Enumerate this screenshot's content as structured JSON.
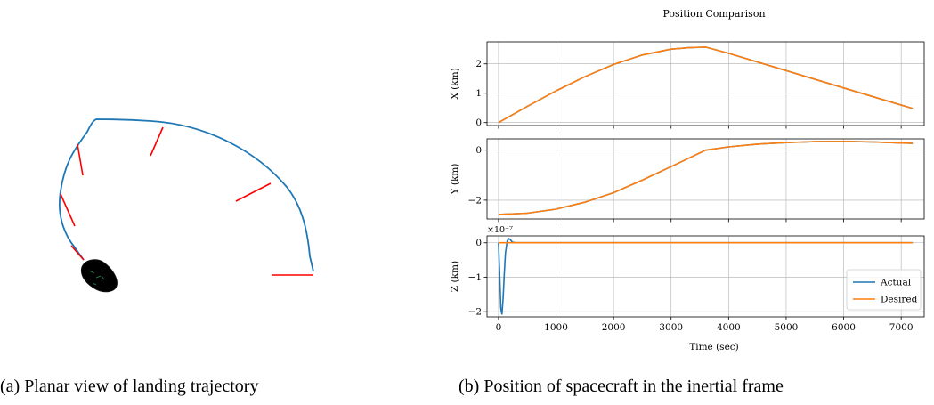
{
  "captions": {
    "a": "(a) Planar view of landing trajectory",
    "b": "(b) Position of spacecraft in the inertial frame"
  },
  "colors": {
    "trajectory": "#1f77b4",
    "thrust": "#ff0000",
    "asteroid": "#000000",
    "actual": "#1f77b4",
    "desired": "#ff7f0e",
    "grid": "#b0b0b0"
  },
  "chart_data": [
    {
      "type": "line",
      "panel": "planar-view",
      "title": "",
      "xlabel": "",
      "ylabel": "",
      "axes_visible": false,
      "series": [
        {
          "values_description": "landing trajectory arc from right to small asteroid at lower left"
        }
      ]
    },
    {
      "type": "line",
      "panel": "position-comparison",
      "title": "Position Comparison",
      "xlabel": "Time (sec)",
      "xlim": [
        -200,
        7400
      ],
      "xticks": [
        0,
        1000,
        2000,
        3000,
        4000,
        5000,
        6000,
        7000
      ],
      "grid": true,
      "legend": {
        "placement": "lower-right",
        "entries": [
          "Actual",
          "Desired"
        ]
      },
      "subplots": [
        {
          "ylabel": "X (km)",
          "ylim": [
            -0.1,
            2.75
          ],
          "yticks": [
            0,
            1,
            2
          ],
          "series": [
            {
              "name": "Actual",
              "x": [
                0,
                500,
                1000,
                1500,
                2000,
                2500,
                3000,
                3300,
                3600,
                4000,
                5000,
                6000,
                7200
              ],
              "y": [
                0,
                0.55,
                1.08,
                1.56,
                1.98,
                2.3,
                2.5,
                2.55,
                2.57,
                2.36,
                1.77,
                1.18,
                0.48
              ]
            },
            {
              "name": "Desired",
              "x": [
                0,
                500,
                1000,
                1500,
                2000,
                2500,
                3000,
                3300,
                3600,
                4000,
                5000,
                6000,
                7200
              ],
              "y": [
                0,
                0.55,
                1.08,
                1.56,
                1.98,
                2.3,
                2.5,
                2.55,
                2.57,
                2.36,
                1.77,
                1.18,
                0.48
              ]
            }
          ]
        },
        {
          "ylabel": "Y (km)",
          "ylim": [
            -2.75,
            0.45
          ],
          "yticks": [
            -2,
            0
          ],
          "series": [
            {
              "name": "Actual",
              "x": [
                0,
                500,
                1000,
                1500,
                2000,
                2500,
                3000,
                3600,
                4000,
                4500,
                5000,
                5500,
                6000,
                6500,
                7200
              ],
              "y": [
                -2.57,
                -2.52,
                -2.36,
                -2.08,
                -1.7,
                -1.2,
                -0.66,
                0,
                0.13,
                0.24,
                0.3,
                0.34,
                0.35,
                0.33,
                0.27
              ]
            },
            {
              "name": "Desired",
              "x": [
                0,
                500,
                1000,
                1500,
                2000,
                2500,
                3000,
                3600,
                4000,
                4500,
                5000,
                5500,
                6000,
                6500,
                7200
              ],
              "y": [
                -2.57,
                -2.52,
                -2.36,
                -2.08,
                -1.7,
                -1.2,
                -0.66,
                0,
                0.13,
                0.24,
                0.3,
                0.34,
                0.35,
                0.33,
                0.27
              ]
            }
          ]
        },
        {
          "ylabel": "Z (km)",
          "ylim": [
            -2.15,
            0.2
          ],
          "yticks": [
            -2,
            -1,
            0
          ],
          "offset_label": "×10⁻⁷",
          "series": [
            {
              "name": "Actual",
              "x": [
                0,
                20,
                40,
                60,
                80,
                100,
                120,
                150,
                180,
                210,
                240,
                300,
                400,
                7200
              ],
              "y": [
                0,
                -0.9,
                -1.9,
                -2.08,
                -1.6,
                -0.9,
                -0.3,
                0.05,
                0.12,
                0.08,
                0.02,
                0,
                0,
                0
              ]
            },
            {
              "name": "Desired",
              "x": [
                0,
                7200
              ],
              "y": [
                0,
                0
              ]
            }
          ]
        }
      ]
    }
  ]
}
